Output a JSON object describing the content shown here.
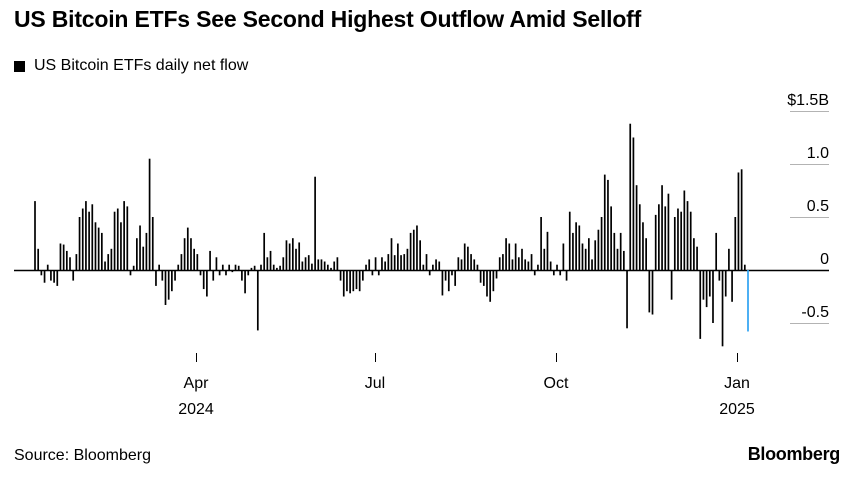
{
  "title": "US Bitcoin ETFs See Second Highest Outflow Amid Selloff",
  "legend_label": "US Bitcoin ETFs daily net flow",
  "source": "Source: Bloomberg",
  "brand": "Bloomberg",
  "colors": {
    "bar": "#000000",
    "highlight": "#2ea3f2",
    "grid": "#b3b3b3"
  },
  "chart_data": {
    "type": "bar",
    "title": "US Bitcoin ETFs See Second Highest Outflow Amid Selloff",
    "series": [
      {
        "name": "US Bitcoin ETFs daily net flow"
      }
    ],
    "ylabel": "",
    "unit": "$B",
    "ylim": [
      -0.75,
      1.5
    ],
    "y_ticks": [
      {
        "value": 1.5,
        "label": "$1.5B"
      },
      {
        "value": 1.0,
        "label": "1.0"
      },
      {
        "value": 0.5,
        "label": "0.5"
      },
      {
        "value": 0.0,
        "label": "0"
      },
      {
        "value": -0.5,
        "label": "-0.5"
      }
    ],
    "x_ticks": [
      {
        "label": "Apr",
        "sublabel": "2024"
      },
      {
        "label": "Jul",
        "sublabel": ""
      },
      {
        "label": "Oct",
        "sublabel": ""
      },
      {
        "label": "Jan",
        "sublabel": "2025"
      }
    ],
    "grid": true,
    "legend_position": "top-left",
    "values": [
      0.65,
      0.2,
      -0.05,
      -0.12,
      0.05,
      -0.1,
      -0.12,
      -0.15,
      0.25,
      0.24,
      0.18,
      0.12,
      -0.1,
      0.15,
      0.5,
      0.58,
      0.65,
      0.55,
      0.62,
      0.45,
      0.4,
      0.35,
      0.08,
      0.15,
      0.2,
      0.55,
      0.58,
      0.45,
      0.65,
      0.6,
      -0.05,
      0.04,
      0.3,
      0.42,
      0.22,
      0.35,
      1.05,
      0.5,
      -0.15,
      0.05,
      -0.1,
      -0.33,
      -0.28,
      -0.2,
      -0.1,
      0.05,
      0.15,
      0.3,
      0.4,
      0.3,
      0.2,
      0.15,
      -0.05,
      -0.18,
      -0.25,
      0.18,
      -0.1,
      0.12,
      -0.05,
      0.05,
      -0.05,
      0.05,
      -0.02,
      0.05,
      0.04,
      -0.1,
      -0.22,
      -0.05,
      0.02,
      0.04,
      -0.57,
      0.05,
      0.35,
      0.12,
      0.18,
      0.05,
      0.02,
      0.04,
      0.12,
      0.28,
      0.25,
      0.3,
      0.2,
      0.26,
      0.08,
      0.12,
      0.14,
      0.06,
      0.88,
      0.1,
      0.1,
      0.08,
      0.05,
      0.02,
      0.08,
      0.12,
      -0.1,
      -0.25,
      -0.2,
      -0.22,
      -0.2,
      -0.18,
      -0.2,
      -0.1,
      0.05,
      0.1,
      -0.05,
      0.12,
      -0.05,
      0.12,
      0.08,
      0.15,
      0.3,
      0.14,
      0.25,
      0.14,
      0.15,
      0.2,
      0.35,
      0.38,
      0.42,
      0.28,
      0.05,
      0.15,
      -0.05,
      0.05,
      0.1,
      0.08,
      -0.24,
      -0.1,
      -0.2,
      -0.05,
      -0.15,
      0.12,
      0.1,
      0.25,
      0.22,
      0.15,
      0.1,
      0.05,
      -0.12,
      -0.15,
      -0.25,
      -0.3,
      -0.2,
      -0.08,
      0.12,
      0.15,
      0.3,
      0.25,
      0.1,
      0.25,
      0.12,
      0.2,
      0.1,
      0.08,
      0.15,
      -0.05,
      0.05,
      0.5,
      0.2,
      0.36,
      0.08,
      -0.05,
      0.05,
      -0.05,
      0.25,
      -0.1,
      0.55,
      0.35,
      0.45,
      0.42,
      0.25,
      0.2,
      0.3,
      0.1,
      0.28,
      0.38,
      0.5,
      0.9,
      0.85,
      0.6,
      0.35,
      0.2,
      0.35,
      0.18,
      -0.55,
      1.38,
      1.25,
      0.8,
      0.62,
      0.45,
      0.3,
      -0.4,
      -0.42,
      0.52,
      0.62,
      0.8,
      0.6,
      0.72,
      -0.28,
      0.5,
      0.58,
      0.55,
      0.75,
      0.65,
      0.55,
      0.3,
      0.22,
      -0.65,
      -0.28,
      -0.35,
      -0.25,
      -0.5,
      0.35,
      -0.1,
      -0.72,
      -0.25,
      0.2,
      -0.3,
      0.5,
      0.92,
      0.95,
      0.05,
      -0.58
    ]
  }
}
